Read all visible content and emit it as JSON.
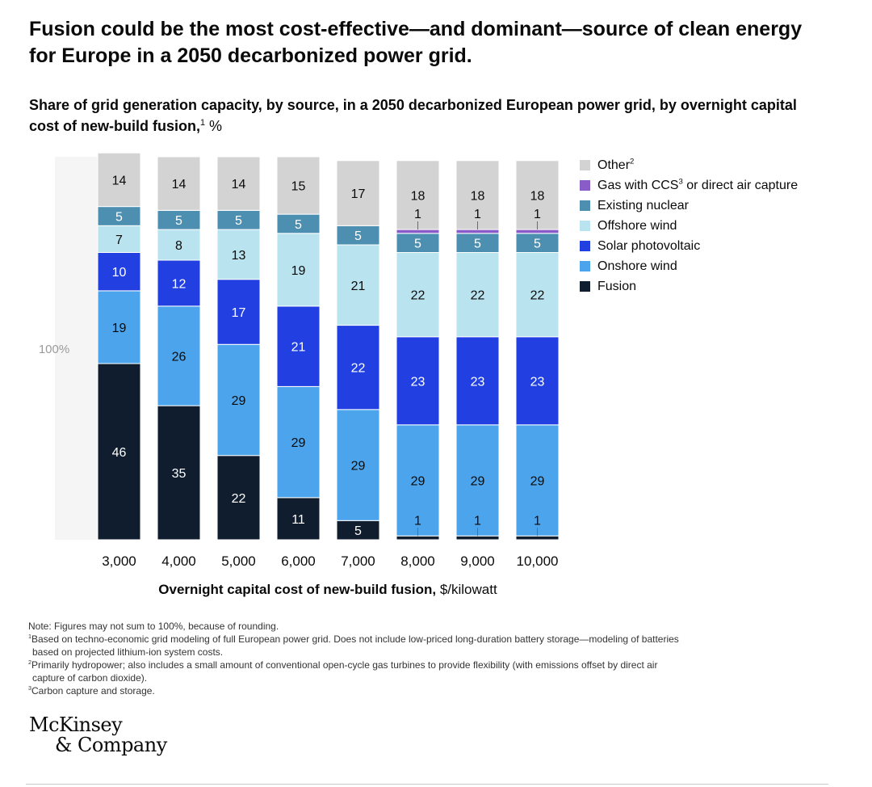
{
  "headline": "Fusion could be the most cost-effective—and dominant—source of clean energy for Europe in a 2050 decarbonized power grid.",
  "subtitle": {
    "text": "Share of grid generation capacity, by source, in a 2050 decarbonized European power grid, by overnight capital cost of new-build fusion,",
    "footnote_ref": "1",
    "unit": " %"
  },
  "colors": {
    "Other": "#d3d3d4",
    "Gas with CCS or direct air capture": "#8a5cc8",
    "Existing nuclear": "#4c8fb0",
    "Offshore wind": "#b9e3ef",
    "Solar photovoltaic": "#2240e2",
    "Onshore wind": "#4ca5ec",
    "Fusion": "#0f1d2e",
    "background_panel": "#f5f5f5"
  },
  "chart_data": {
    "type": "bar",
    "stacked": true,
    "title": "Share of grid generation capacity, by source, in a 2050 decarbonized European power grid, by overnight capital cost of new-build fusion, %",
    "xlabel": "Overnight capital cost of new-build fusion, $/kilowatt",
    "ylabel": "",
    "y_reference_label": "100%",
    "ylim": [
      0,
      100
    ],
    "categories": [
      "3,000",
      "4,000",
      "5,000",
      "6,000",
      "7,000",
      "8,000",
      "9,000",
      "10,000"
    ],
    "series": [
      {
        "name": "Fusion",
        "values": [
          46,
          35,
          22,
          11,
          5,
          1,
          1,
          1
        ],
        "label_color": "#ffffff"
      },
      {
        "name": "Onshore wind",
        "values": [
          19,
          26,
          29,
          29,
          29,
          29,
          29,
          29
        ],
        "label_color": "#0a0a0a"
      },
      {
        "name": "Solar photovoltaic",
        "values": [
          10,
          12,
          17,
          21,
          22,
          23,
          23,
          23
        ],
        "label_color": "#ffffff"
      },
      {
        "name": "Offshore wind",
        "values": [
          7,
          8,
          13,
          19,
          21,
          22,
          22,
          22
        ],
        "label_color": "#0a0a0a"
      },
      {
        "name": "Existing nuclear",
        "values": [
          5,
          5,
          5,
          5,
          5,
          5,
          5,
          5
        ],
        "label_color": "#ffffff"
      },
      {
        "name": "Gas with CCS or direct air capture",
        "values": [
          0,
          0,
          0,
          0,
          0,
          1,
          1,
          1
        ],
        "label_color": "#0a0a0a"
      },
      {
        "name": "Other",
        "values": [
          14,
          14,
          14,
          15,
          17,
          18,
          18,
          18
        ],
        "label_color": "#0a0a0a"
      }
    ],
    "legend_position": "right",
    "grid": false
  },
  "legend": [
    {
      "label": "Other",
      "sup": "2",
      "rest": ""
    },
    {
      "label": "Gas with CCS",
      "sup": "3",
      "rest": " or direct air capture"
    },
    {
      "label": "Existing nuclear",
      "sup": "",
      "rest": ""
    },
    {
      "label": "Offshore wind",
      "sup": "",
      "rest": ""
    },
    {
      "label": "Solar photovoltaic",
      "sup": "",
      "rest": ""
    },
    {
      "label": "Onshore wind",
      "sup": "",
      "rest": ""
    },
    {
      "label": "Fusion",
      "sup": "",
      "rest": ""
    }
  ],
  "xlabel_bold": "Overnight capital cost of new-build fusion,",
  "xlabel_unit": " $/kilowatt",
  "notes": {
    "note": "Note: Figures may not sum to 100%, because of rounding.",
    "fn1_mark": "1",
    "fn1_a": "Based on techno-economic grid modeling of full European power grid. Does not include low-priced long-duration battery storage—modeling of batteries",
    "fn1_b": "based on projected lithium-ion system costs.",
    "fn2_mark": "2",
    "fn2_a": "Primarily hydropower; also includes a small amount of conventional open-cycle gas turbines to provide flexibility (with emissions offset by direct air",
    "fn2_b": "capture of carbon dioxide).",
    "fn3_mark": "3",
    "fn3_a": "Carbon capture and storage."
  },
  "logo": {
    "line1": "McKinsey",
    "line2": "& Company"
  }
}
